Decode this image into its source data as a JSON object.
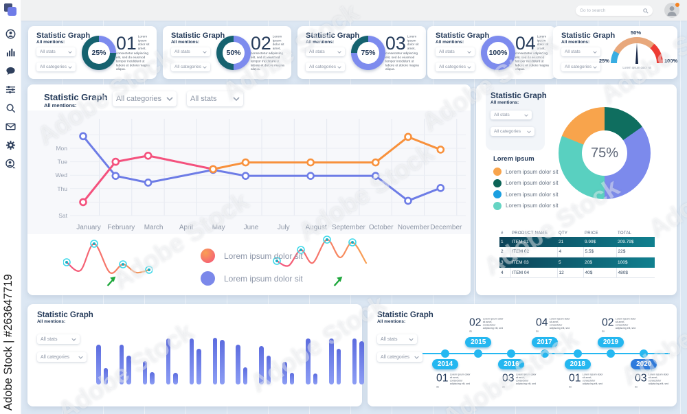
{
  "watermark": {
    "vertical": "Adobe Stock | #263647719",
    "diagonal": "Adobe Stock"
  },
  "topbar": {
    "search_placeholder": "Go to search"
  },
  "sidebar": {
    "icons": [
      "user",
      "bar-chart",
      "chat",
      "sliders",
      "search",
      "mail",
      "gear",
      "user-group"
    ]
  },
  "lorem_full": "Lorem ipsum dolor sit amet, consectetur adipiscing elit, sed do eiusmod tempor incididunt ut labore et dolore magna aliqua.",
  "lorem_short": "Lorem ipsum dolor sit amet, consectetur adipiscing elit, sed do",
  "stat_cards": [
    {
      "title": "Statistic Graph",
      "subtitle": "All mentions:",
      "stats_dropdown": "All stats",
      "categories_dropdown": "All categories",
      "number": "01",
      "percent": 25,
      "percent_label": "25%"
    },
    {
      "title": "Statistic Graph",
      "subtitle": "All mentions:",
      "stats_dropdown": "All stats",
      "categories_dropdown": "All categories",
      "number": "02",
      "percent": 50,
      "percent_label": "50%"
    },
    {
      "title": "Statistic Graph",
      "subtitle": "All mentions:",
      "stats_dropdown": "All stats",
      "categories_dropdown": "All categories",
      "number": "03",
      "percent": 75,
      "percent_label": "75%"
    },
    {
      "title": "Statistic Graph",
      "subtitle": "All mentions:",
      "stats_dropdown": "All stats",
      "categories_dropdown": "All categories",
      "number": "04",
      "percent": 100,
      "percent_label": "100%"
    }
  ],
  "donut_colors": {
    "value": "#7d8bee",
    "rest": "#15626f"
  },
  "gauge_card": {
    "title": "Statistic Graph",
    "subtitle": "All mentions:",
    "stats_dropdown": "All stats",
    "categories_dropdown": "All categories",
    "tick_left": "25%",
    "tick_top": "50%",
    "tick_right": "100%",
    "caption": "Lorem ipsum  dolor sit",
    "chart_data": {
      "type": "gauge",
      "segments": [
        {
          "color": "#38ade2",
          "deg": 28
        },
        {
          "color": "#e8a87c",
          "deg": 104
        },
        {
          "color": "#ee3b33",
          "deg": 48
        }
      ],
      "needle_deg": 0
    }
  },
  "line_card": {
    "title": "Statistic Graph",
    "subtitle": "All mentions:",
    "categories_dropdown": "All categories",
    "stats_dropdown": "All stats",
    "chart_data": {
      "type": "line",
      "x_labels": [
        "January",
        "February",
        "March",
        "April",
        "May",
        "June",
        "July",
        "August",
        "September",
        "October",
        "November",
        "December"
      ],
      "y_labels": [
        "Mon",
        "Tue",
        "Wed",
        "Thu",
        "Sat"
      ],
      "series": [
        {
          "name": "pink",
          "color": "#f4517d",
          "points": [
            [
              0,
              4
            ],
            [
              1,
              1
            ],
            [
              2,
              0.55
            ],
            [
              4,
              1.55
            ]
          ]
        },
        {
          "name": "orange",
          "color": "#f8913c",
          "points": [
            [
              4,
              1.55
            ],
            [
              5,
              1.05
            ],
            [
              7,
              1.05
            ],
            [
              9,
              1.05
            ],
            [
              10,
              -0.85
            ],
            [
              11,
              0.1
            ]
          ]
        },
        {
          "name": "blue",
          "color": "#6d7ce6",
          "points": [
            [
              0,
              -0.9
            ],
            [
              1,
              2.05
            ],
            [
              2,
              2.55
            ],
            [
              4,
              1.6
            ],
            [
              5,
              2.05
            ],
            [
              7,
              2.05
            ],
            [
              9,
              2.05
            ],
            [
              10,
              3.9
            ],
            [
              11,
              2.95
            ]
          ]
        }
      ]
    },
    "sparklines": [
      {
        "points": [
          [
            5,
            37
          ],
          [
            25,
            49
          ],
          [
            45,
            10
          ],
          [
            68,
            52
          ],
          [
            87,
            40
          ],
          [
            106,
            52
          ],
          [
            125,
            48
          ]
        ],
        "dot_indices": [
          0,
          2,
          4,
          6
        ]
      },
      {
        "points": [
          [
            8,
            37
          ],
          [
            25,
            44
          ],
          [
            43,
            21
          ],
          [
            60,
            40
          ],
          [
            81,
            6
          ],
          [
            100,
            32
          ],
          [
            118,
            10
          ],
          [
            138,
            40
          ]
        ],
        "dot_indices": [
          0,
          2,
          4,
          6
        ]
      }
    ],
    "legend": [
      {
        "swatch": "gradient",
        "label": "Lorem ipsum dolor sit"
      },
      {
        "swatch": "#7b88ea",
        "label": "Lorem ipsum dolor sit"
      }
    ]
  },
  "donut_card": {
    "title": "Statistic Graph",
    "subtitle": "All mentions:",
    "stats_dropdown": "All stats",
    "categories_dropdown": "All categories",
    "center_label": "75%",
    "chart_data": {
      "type": "donut",
      "segments": [
        {
          "color": "#0f6e5f",
          "deg": 55
        },
        {
          "color": "#7c8aec",
          "deg": 125
        },
        {
          "color": "#59d0c0",
          "deg": 112
        },
        {
          "color": "#f8a44c",
          "deg": 68
        }
      ]
    },
    "legend_title": "Lorem ipsum",
    "legend": [
      {
        "color": "#f8a44c",
        "label": "Lorem ipsum  dolor sit"
      },
      {
        "color": "#0c6356",
        "label": "Lorem ipsum  dolor sit"
      },
      {
        "color": "#1b9fe0",
        "label": "Lorem ipsum  dolor sit"
      },
      {
        "color": "#66d4c3",
        "label": "Lorem ipsum  dolor sit"
      }
    ],
    "table": {
      "headers": [
        "#",
        "PRODUCT NAME",
        "QTY",
        "PRICE",
        "TOTAL"
      ],
      "rows": [
        {
          "cells": [
            "1",
            "ITEM 01",
            "21",
            "9.99$",
            "209.79$"
          ],
          "dark": true
        },
        {
          "cells": [
            "2",
            "ITEM 02",
            "4",
            "5.5$",
            "22$"
          ],
          "dark": false
        },
        {
          "cells": [
            "3",
            "ITEM 03",
            "5",
            "20$",
            "100$"
          ],
          "dark": true
        },
        {
          "cells": [
            "4",
            "ITEM 04",
            "12",
            "40$",
            "480$"
          ],
          "dark": false
        }
      ]
    }
  },
  "bars_card": {
    "title": "Statistic Graph",
    "subtitle": "All mentions:",
    "stats_dropdown": "All stats",
    "categories_dropdown": "All categories",
    "chart_data": {
      "type": "bar",
      "pairs": [
        [
          58,
          24
        ],
        [
          58,
          42
        ],
        [
          34,
          18
        ],
        [
          67,
          17
        ],
        [
          67,
          52
        ],
        [
          68,
          65
        ],
        [
          58,
          25
        ],
        [
          56,
          42
        ],
        [
          33,
          17
        ],
        [
          67,
          16
        ],
        [
          67,
          52
        ],
        [
          67,
          63
        ]
      ]
    }
  },
  "timeline_card": {
    "title": "Statistic Graph",
    "subtitle": "All mentions:",
    "stats_dropdown": "All stats",
    "categories_dropdown": "All categories",
    "entries": [
      {
        "year": "2014",
        "number": "01",
        "side": "below",
        "pill": "#24b7f0"
      },
      {
        "year": "2015",
        "number": "02",
        "side": "above",
        "pill": "#24b7f0"
      },
      {
        "year": "2016",
        "number": "03",
        "side": "below",
        "pill": "#24b7f0"
      },
      {
        "year": "2017",
        "number": "04",
        "side": "above",
        "pill": "#24b7f0"
      },
      {
        "year": "2018",
        "number": "01",
        "side": "below",
        "pill": "#24b7f0"
      },
      {
        "year": "2019",
        "number": "02",
        "side": "above",
        "pill": "#24b7f0"
      },
      {
        "year": "2020",
        "number": "03",
        "side": "below",
        "pill": "#2e7bdd"
      }
    ]
  }
}
